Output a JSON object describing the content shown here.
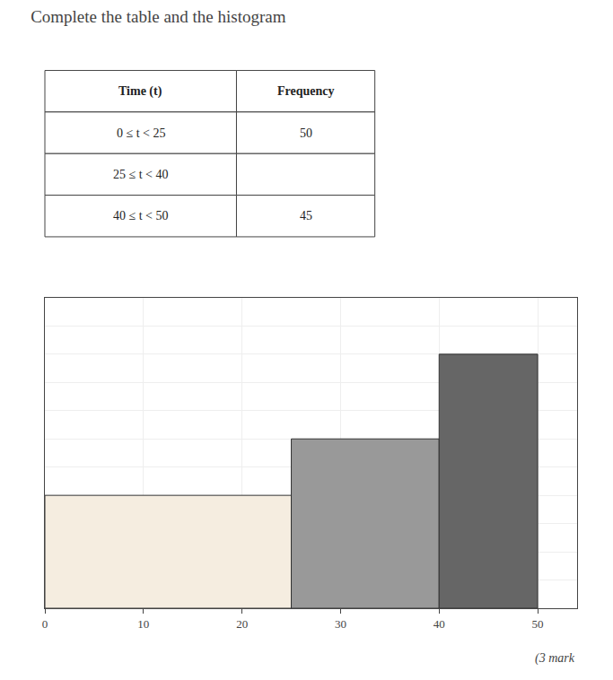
{
  "chart_data": {
    "type": "histogram",
    "title": "Complete the table and the histogram",
    "bins": [
      0,
      25,
      40,
      50
    ],
    "values": [
      2.0,
      3.0,
      4.5
    ],
    "colors": [
      "#f5ede0",
      "#999999",
      "#666666"
    ],
    "xlim": [
      0,
      54
    ],
    "xticks": [
      0,
      10,
      20,
      30,
      40,
      50
    ],
    "ylim": [
      0,
      5.5
    ],
    "yticks": [
      0,
      0.5,
      1.0,
      1.5,
      2.0,
      2.5,
      3.0,
      3.5,
      4.0,
      4.5,
      5.0,
      5.5
    ],
    "grid": true,
    "tick_labels": "x",
    "table": {
      "headers": [
        "Time (t)",
        "Frequency"
      ],
      "rows": [
        [
          "0 ≤ t < 25",
          "50"
        ],
        [
          "25 ≤ t < 40",
          null
        ],
        [
          "40 ≤ t < 50",
          "45"
        ]
      ]
    },
    "annotations": [
      "(3 mark"
    ]
  }
}
